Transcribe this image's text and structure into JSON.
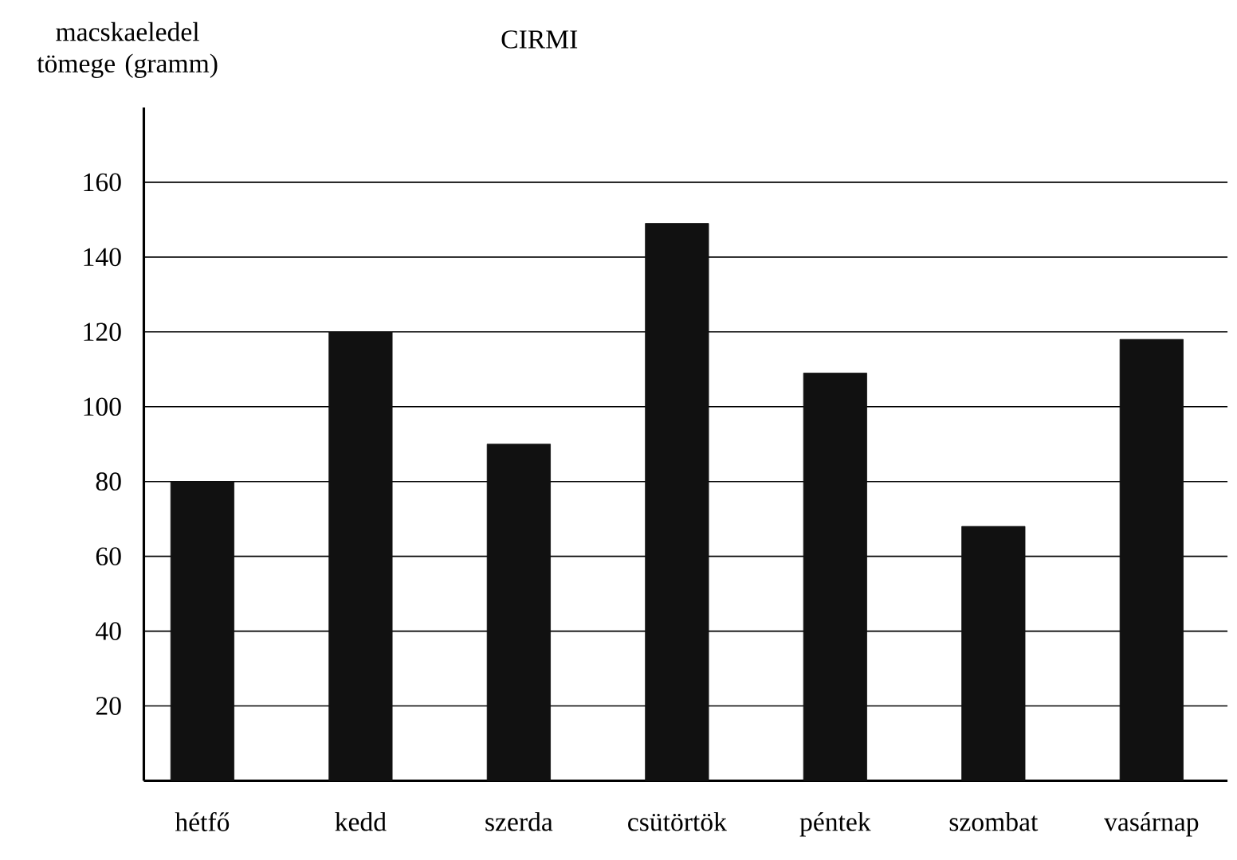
{
  "chart_data": {
    "type": "bar",
    "title": "CIRMI",
    "ylabel": "macskaeledel tömege (gramm)",
    "categories": [
      "hétfő",
      "kedd",
      "szerda",
      "csütörtök",
      "péntek",
      "szombat",
      "vasárnap"
    ],
    "values": [
      80,
      120,
      90,
      149,
      109,
      68,
      118
    ],
    "color": "#111111",
    "ylim": [
      0,
      180
    ],
    "yticks": [
      20,
      40,
      60,
      80,
      100,
      120,
      140,
      160
    ],
    "grid": "y"
  }
}
